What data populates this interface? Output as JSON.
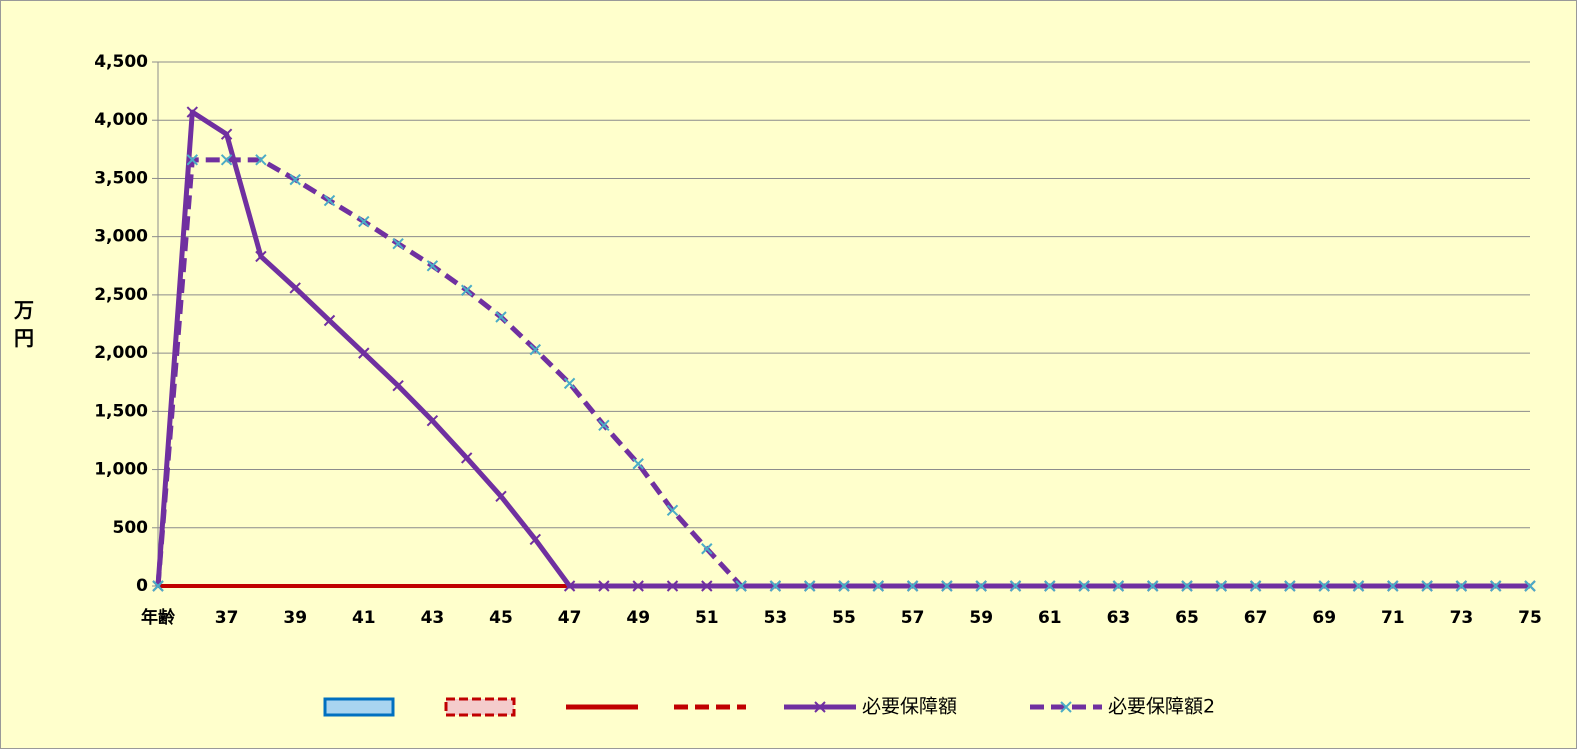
{
  "chart_data": {
    "type": "line",
    "ylabel": "万円",
    "categories": [
      "年齢",
      null,
      "37",
      null,
      "39",
      null,
      "41",
      null,
      "43",
      null,
      "45",
      null,
      "47",
      null,
      "49",
      null,
      "51",
      null,
      "53",
      null,
      "55",
      null,
      "57",
      null,
      "59",
      null,
      "61",
      null,
      "63",
      null,
      "65",
      null,
      "67",
      null,
      "69",
      null,
      "71",
      null,
      "73",
      null,
      "75"
    ],
    "ylim": [
      0,
      4500
    ],
    "yticks": [
      0,
      500,
      {
        "value": 1000,
        "label": "1,000"
      },
      {
        "value": 1500,
        "label": "1,500"
      },
      {
        "value": 2000,
        "label": "2,000"
      },
      {
        "value": 2500,
        "label": "2,500"
      },
      {
        "value": 3000,
        "label": "3,000"
      },
      {
        "value": 3500,
        "label": "3,500"
      },
      {
        "value": 4000,
        "label": "4,000"
      },
      {
        "value": 4500,
        "label": "4,500"
      }
    ],
    "grid": true,
    "legend": "bottom",
    "series": [
      {
        "kind": "bar",
        "color": "#0070c0",
        "fill": "#a9d4f0",
        "dash": false,
        "values": [
          null,
          null,
          null,
          null,
          null,
          null,
          null,
          null,
          null,
          null,
          null,
          null,
          null,
          null,
          null,
          null,
          null,
          null,
          null,
          null,
          null,
          null,
          null,
          null,
          null,
          null,
          null,
          null,
          null,
          null,
          null,
          null,
          null,
          null,
          null,
          null,
          null,
          null,
          null,
          null,
          null
        ]
      },
      {
        "kind": "bar",
        "color": "#c00000",
        "fill": "#f4cccc",
        "dash": true,
        "values": [
          null,
          null,
          null,
          null,
          null,
          null,
          null,
          null,
          null,
          null,
          null,
          null,
          null,
          null,
          null,
          null,
          null,
          null,
          null,
          null,
          null,
          null,
          null,
          null,
          null,
          null,
          null,
          null,
          null,
          null,
          null,
          null,
          null,
          null,
          null,
          null,
          null,
          null,
          null,
          null,
          null
        ]
      },
      {
        "kind": "line",
        "color": "#c00000",
        "dash": false,
        "values": [
          0,
          0,
          0,
          0,
          0,
          0,
          0,
          0,
          0,
          0,
          0,
          0,
          0,
          null,
          null,
          null,
          null,
          null,
          null,
          null,
          null,
          null,
          null,
          null,
          null,
          null,
          null,
          null,
          null,
          null,
          null,
          null,
          null,
          null,
          null,
          null,
          null,
          null,
          null,
          null,
          null
        ]
      },
      {
        "kind": "line",
        "color": "#c00000",
        "dash": true,
        "values": [
          null,
          null,
          null,
          null,
          null,
          null,
          null,
          null,
          null,
          null,
          null,
          null,
          null,
          null,
          null,
          null,
          null,
          null,
          null,
          null,
          null,
          null,
          null,
          null,
          null,
          null,
          null,
          null,
          null,
          null,
          null,
          null,
          null,
          null,
          null,
          null,
          null,
          null,
          null,
          null,
          null
        ]
      },
      {
        "kind": "line",
        "name": "必要保障額",
        "color": "#7030a0",
        "marker_color": "#7030a0",
        "dash": false,
        "values": [
          0,
          4070,
          3880,
          2830,
          2560,
          2280,
          2000,
          1720,
          1420,
          1100,
          770,
          400,
          0,
          0,
          0,
          0,
          0,
          0,
          0,
          0,
          0,
          0,
          0,
          0,
          0,
          0,
          0,
          0,
          0,
          0,
          0,
          0,
          0,
          0,
          0,
          0,
          0,
          0,
          0,
          0,
          0
        ]
      },
      {
        "kind": "line",
        "name": "必要保障額2",
        "color": "#7030a0",
        "marker_color": "#4bacc6",
        "dash": true,
        "values": [
          0,
          3660,
          3660,
          3660,
          3490,
          3310,
          3130,
          2940,
          2750,
          2540,
          2310,
          2030,
          1740,
          1380,
          1050,
          650,
          320,
          0,
          0,
          0,
          0,
          0,
          0,
          0,
          0,
          0,
          0,
          0,
          0,
          0,
          0,
          0,
          0,
          0,
          0,
          0,
          0,
          0,
          0,
          0,
          0
        ]
      }
    ]
  }
}
